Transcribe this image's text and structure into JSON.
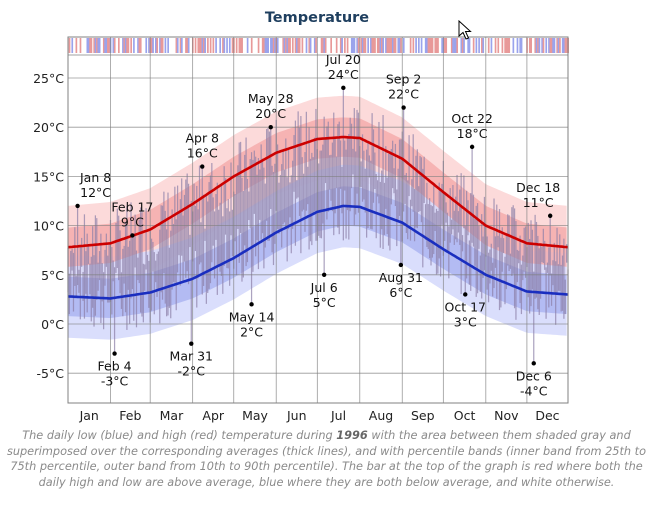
{
  "chart_data": {
    "type": "line",
    "title": "Temperature",
    "y_unit": "°C",
    "ylim": [
      -8.5,
      28.5
    ],
    "y_ticks": [
      -5,
      0,
      5,
      10,
      15,
      20,
      25
    ],
    "y_tick_labels": [
      "-5°C",
      "0°C",
      "5°C",
      "10°C",
      "15°C",
      "20°C",
      "25°C"
    ],
    "x_range_days": [
      1,
      366
    ],
    "months": [
      "Jan",
      "Feb",
      "Mar",
      "Apr",
      "May",
      "Jun",
      "Jul",
      "Aug",
      "Sep",
      "Oct",
      "Nov",
      "Dec"
    ],
    "grid": true,
    "series": [
      {
        "name": "high",
        "color": "#cc0000",
        "average": {
          "x": [
            "Jan 1",
            "Feb 1",
            "Mar 1",
            "Apr 1",
            "May 1",
            "Jun 1",
            "Jul 1",
            "Jul 20",
            "Aug 1",
            "Sep 1",
            "Oct 1",
            "Nov 1",
            "Dec 1",
            "Dec 31"
          ],
          "values": [
            7.8,
            8.2,
            9.6,
            12.2,
            15.0,
            17.4,
            18.8,
            19.0,
            18.9,
            16.8,
            13.4,
            10.0,
            8.2,
            7.8
          ]
        }
      },
      {
        "name": "low",
        "color": "#1a2ebf",
        "average": {
          "x": [
            "Jan 1",
            "Feb 1",
            "Mar 1",
            "Apr 1",
            "May 1",
            "Jun 1",
            "Jul 1",
            "Jul 20",
            "Aug 1",
            "Sep 1",
            "Oct 1",
            "Nov 1",
            "Dec 1",
            "Dec 31"
          ],
          "values": [
            2.8,
            2.6,
            3.2,
            4.6,
            6.7,
            9.3,
            11.4,
            12.0,
            11.9,
            10.3,
            7.6,
            5.0,
            3.3,
            3.0
          ]
        }
      }
    ],
    "annotations": [
      {
        "date": "Jan 8",
        "value": 12,
        "label": "12°C",
        "kind": "high"
      },
      {
        "date": "Feb 4",
        "value": -3,
        "label": "-3°C",
        "kind": "low"
      },
      {
        "date": "Feb 17",
        "value": 9,
        "label": "9°C",
        "kind": "high"
      },
      {
        "date": "Mar 31",
        "value": -2,
        "label": "-2°C",
        "kind": "low"
      },
      {
        "date": "Apr 8",
        "value": 16,
        "label": "16°C",
        "kind": "high"
      },
      {
        "date": "May 14",
        "value": 2,
        "label": "2°C",
        "kind": "low"
      },
      {
        "date": "May 28",
        "value": 20,
        "label": "20°C",
        "kind": "high"
      },
      {
        "date": "Jul 6",
        "value": 5,
        "label": "5°C",
        "kind": "low"
      },
      {
        "date": "Jul 20",
        "value": 24,
        "label": "24°C",
        "kind": "high"
      },
      {
        "date": "Aug 31",
        "value": 6,
        "label": "6°C",
        "kind": "low"
      },
      {
        "date": "Sep 2",
        "value": 22,
        "label": "22°C",
        "kind": "high"
      },
      {
        "date": "Oct 17",
        "value": 3,
        "label": "3°C",
        "kind": "low"
      },
      {
        "date": "Oct 22",
        "value": 18,
        "label": "18°C",
        "kind": "high"
      },
      {
        "date": "Dec 6",
        "value": -4,
        "label": "-4°C",
        "kind": "low"
      },
      {
        "date": "Dec 18",
        "value": 11,
        "label": "11°C",
        "kind": "high"
      }
    ],
    "caption": {
      "before": "The daily low (blue) and high (red) temperature during ",
      "year": "1996",
      "after": " with the area between them shaded gray and superimposed over the corresponding averages (thick lines), and with percentile bands (inner band from 25th to 75th percentile, outer band from 10th to 90th percentile). The bar at the top of the graph is red where both the daily high and low are above average, blue where they are both below average, and white otherwise."
    },
    "colors": {
      "high_line": "#cc0000",
      "low_line": "#1a2ebf",
      "high_outer_band": "#fbd3d3",
      "high_inner_band": "#f4a9a9",
      "low_outer_band": "#d3d8fb",
      "low_inner_band": "#a9b1f0",
      "daily_bar": "#8c7fa8",
      "grid": "#808080",
      "top_bar_red": "#e89999",
      "top_bar_blue": "#9aa3ec"
    }
  }
}
